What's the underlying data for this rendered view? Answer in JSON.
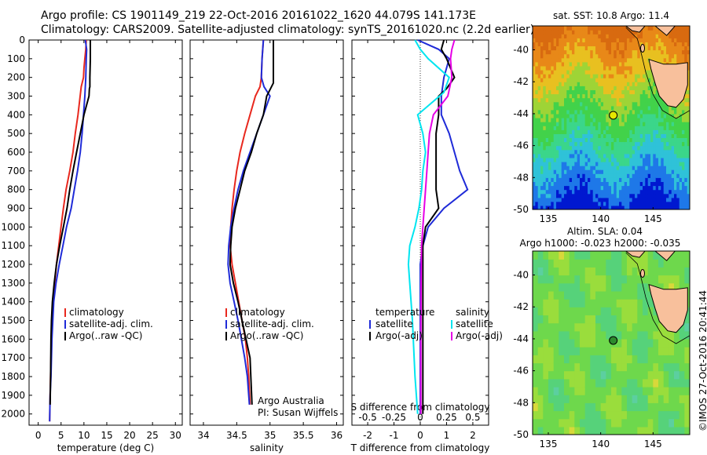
{
  "header": {
    "line1": "Argo profile: CS 1901149_219 22-Oct-2016 20161022_1620 44.079S 141.173E",
    "line2": "Climatology: CARS2009. Satellite-adjusted climatology: synTS_20161020.nc (2.2d earlier)"
  },
  "credit": "©IMOS 27-Oct-2016 20:41:44",
  "colors": {
    "climatology": "#e8281e",
    "satellite": "#1f2bd8",
    "argo": "#000000",
    "sat_diff_T": "#00e5f0",
    "argo_diff_T": "#e600e6"
  },
  "chart_data": [
    {
      "type": "line",
      "id": "temperature",
      "xlabel": "temperature (deg C)",
      "ylabel": "",
      "xlim": [
        -2,
        31.5
      ],
      "ylim": [
        2060,
        0
      ],
      "xticks": [
        0,
        5,
        10,
        15,
        20,
        25,
        30
      ],
      "yticks": [
        0,
        100,
        200,
        300,
        400,
        500,
        600,
        700,
        800,
        900,
        1000,
        1100,
        1200,
        1300,
        1400,
        1500,
        1600,
        1700,
        1800,
        1900,
        2000
      ],
      "legend": {
        "position": "lower-middle",
        "entries": [
          "climatology",
          "satellite-adj. clim.",
          "Argo(..raw -QC)"
        ]
      },
      "series": [
        {
          "name": "climatology",
          "color_key": "climatology",
          "x": [
            10.5,
            10.4,
            10.2,
            10.0,
            9.9,
            9.4,
            8.7,
            8.1,
            7.6,
            6.9,
            6.1,
            5.5,
            5.0,
            4.5,
            4.0,
            3.6,
            3.3,
            3.1,
            2.9,
            2.8,
            2.6,
            2.5
          ],
          "y": [
            0,
            50,
            100,
            150,
            200,
            250,
            400,
            500,
            600,
            700,
            800,
            900,
            1000,
            1100,
            1200,
            1300,
            1400,
            1500,
            1600,
            1700,
            1900,
            2040
          ]
        },
        {
          "name": "satellite-adj. clim.",
          "color_key": "satellite",
          "x": [
            10.3,
            10.6,
            10.5,
            10.4,
            10.3,
            10.2,
            9.9,
            9.6,
            9.2,
            8.6,
            7.9,
            7.2,
            6.2,
            5.4,
            4.6,
            3.9,
            3.4,
            3.0,
            2.8,
            2.6,
            2.5
          ],
          "y": [
            0,
            50,
            100,
            200,
            250,
            300,
            400,
            500,
            600,
            700,
            800,
            900,
            1000,
            1100,
            1200,
            1300,
            1400,
            1600,
            1800,
            1900,
            2040
          ]
        },
        {
          "name": "Argo(..raw -QC)",
          "color_key": "argo",
          "x": [
            11.4,
            11.4,
            11.3,
            11.3,
            11.2,
            11.1,
            10.0,
            9.2,
            8.4,
            7.6,
            6.9,
            6.3,
            5.5,
            4.7,
            4.0,
            3.5,
            3.1,
            2.9,
            2.8,
            2.7,
            2.6
          ],
          "y": [
            0,
            100,
            200,
            250,
            260,
            300,
            400,
            500,
            600,
            700,
            800,
            900,
            1000,
            1100,
            1200,
            1300,
            1400,
            1500,
            1600,
            1800,
            1950
          ]
        }
      ]
    },
    {
      "type": "line",
      "id": "salinity",
      "xlabel": "salinity",
      "xlim": [
        33.8,
        36.1
      ],
      "ylim": [
        2060,
        0
      ],
      "xticks": [
        34,
        34.5,
        35,
        35.5,
        36
      ],
      "legend": {
        "position": "lower-middle",
        "entries": [
          "climatology",
          "satellite-adj. clim.",
          "Argo(..raw -QC)"
        ]
      },
      "annotation": [
        "Argo Australia",
        "PI: Susan Wijffels"
      ],
      "series": [
        {
          "name": "climatology",
          "color_key": "climatology",
          "x": [
            34.9,
            34.88,
            34.87,
            34.85,
            34.78,
            34.7,
            34.62,
            34.55,
            34.5,
            34.46,
            34.43,
            34.41,
            34.4,
            34.43,
            34.48,
            34.53,
            34.58,
            34.63,
            34.66,
            34.68,
            34.7
          ],
          "y": [
            0,
            100,
            200,
            250,
            300,
            400,
            500,
            600,
            700,
            800,
            900,
            1000,
            1100,
            1200,
            1300,
            1400,
            1500,
            1600,
            1700,
            1800,
            1950
          ]
        },
        {
          "name": "satellite-adj. clim.",
          "color_key": "satellite",
          "x": [
            34.9,
            34.88,
            34.87,
            34.91,
            35.0,
            34.9,
            34.8,
            34.7,
            34.6,
            34.52,
            34.46,
            34.41,
            34.38,
            34.37,
            34.4,
            34.46,
            34.52,
            34.57,
            34.62,
            34.66,
            34.69
          ],
          "y": [
            0,
            100,
            200,
            250,
            300,
            400,
            500,
            600,
            700,
            800,
            900,
            1000,
            1100,
            1200,
            1300,
            1400,
            1500,
            1600,
            1700,
            1800,
            1950
          ]
        },
        {
          "name": "Argo(..raw -QC)",
          "color_key": "argo",
          "x": [
            35.05,
            35.05,
            35.05,
            35.05,
            34.98,
            34.95,
            34.9,
            34.8,
            34.72,
            34.62,
            34.55,
            34.48,
            34.43,
            34.41,
            34.4,
            34.45,
            34.52,
            34.58,
            34.64,
            34.7,
            34.73
          ],
          "y": [
            0,
            100,
            200,
            230,
            280,
            300,
            400,
            500,
            600,
            700,
            800,
            900,
            1000,
            1100,
            1200,
            1300,
            1400,
            1500,
            1600,
            1700,
            1950
          ]
        }
      ]
    },
    {
      "type": "line",
      "id": "difference",
      "xlabel": "T difference from climatology",
      "top_label": "S difference from climatology",
      "xlim": [
        -2.6,
        2.6
      ],
      "ylim": [
        2060,
        0
      ],
      "xticks": [
        -2,
        -1,
        0,
        1,
        2
      ],
      "s_ticks": [
        -0.5,
        -0.25,
        0,
        0.25,
        0.5
      ],
      "legend_left": {
        "title": "temperature",
        "entries": [
          "satellite",
          "Argo(-adj)"
        ]
      },
      "legend_right": {
        "title": "salinity",
        "entries": [
          "satellite",
          "Argo(-adj)"
        ]
      },
      "series": [
        {
          "name": "T satellite",
          "color_key": "satellite",
          "x": [
            -0.1,
            0.7,
            1.1,
            0.9,
            0.8,
            0.8,
            1.1,
            1.3,
            1.5,
            1.8,
            0.9,
            0.3,
            0.1,
            0.0,
            0.0,
            0.0,
            0.0
          ],
          "y": [
            0,
            50,
            100,
            200,
            300,
            400,
            500,
            600,
            700,
            800,
            900,
            1000,
            1100,
            1200,
            1400,
            1700,
            2000
          ]
        },
        {
          "name": "T Argo(-adj)",
          "color_key": "argo",
          "x": [
            0.9,
            0.8,
            1.0,
            1.3,
            1.0,
            0.7,
            0.7,
            0.6,
            0.6,
            0.6,
            0.6,
            0.7,
            0.2,
            0.1,
            0.1,
            0.1,
            0.1,
            0.1
          ],
          "y": [
            0,
            50,
            100,
            200,
            260,
            300,
            400,
            500,
            600,
            700,
            800,
            900,
            1000,
            1100,
            1200,
            1400,
            1700,
            2000
          ]
        },
        {
          "name": "S satellite",
          "color_key": "sat_diff_T",
          "x": [
            -0.2,
            0.0,
            0.3,
            1.1,
            0.9,
            -0.1,
            0.1,
            0.2,
            0.1,
            0.05,
            -0.05,
            -0.2,
            -0.4,
            -0.45,
            -0.4,
            -0.3,
            -0.2,
            -0.1
          ],
          "y": [
            0,
            50,
            100,
            200,
            280,
            400,
            500,
            600,
            700,
            800,
            900,
            1000,
            1100,
            1200,
            1300,
            1500,
            1800,
            2000
          ]
        },
        {
          "name": "S Argo(-adj)",
          "color_key": "argo_diff_T",
          "x": [
            1.3,
            1.2,
            1.15,
            1.2,
            1.05,
            0.5,
            0.35,
            0.3,
            0.25,
            0.2,
            0.15,
            0.1,
            0.05,
            0.03,
            0.02,
            0.02
          ],
          "y": [
            0,
            50,
            100,
            200,
            300,
            400,
            500,
            600,
            700,
            800,
            900,
            1000,
            1100,
            1300,
            1600,
            2000
          ]
        }
      ]
    },
    {
      "type": "heatmap",
      "id": "sst_map",
      "title": "sat. SST: 10.8  Argo: 11.4",
      "xlim": [
        133.5,
        148.5
      ],
      "ylim": [
        -50,
        -38.5
      ],
      "xticks": [
        135,
        140,
        145
      ],
      "yticks": [
        -40,
        -42,
        -44,
        -46,
        -48,
        -50
      ],
      "marker": {
        "lon": 141.2,
        "lat": -44.1,
        "color": "#e6e600"
      }
    },
    {
      "type": "heatmap",
      "id": "sla_map",
      "title": "Altim. SLA: 0.04",
      "subtitle": "Argo h1000: -0.023 h2000: -0.035",
      "xlim": [
        133.5,
        148.5
      ],
      "ylim": [
        -50,
        -38.5
      ],
      "xticks": [
        135,
        140,
        145
      ],
      "yticks": [
        -40,
        -42,
        -44,
        -46,
        -48,
        -50
      ],
      "marker": {
        "lon": 141.2,
        "lat": -44.1,
        "color": "#2d8a2d"
      }
    }
  ]
}
